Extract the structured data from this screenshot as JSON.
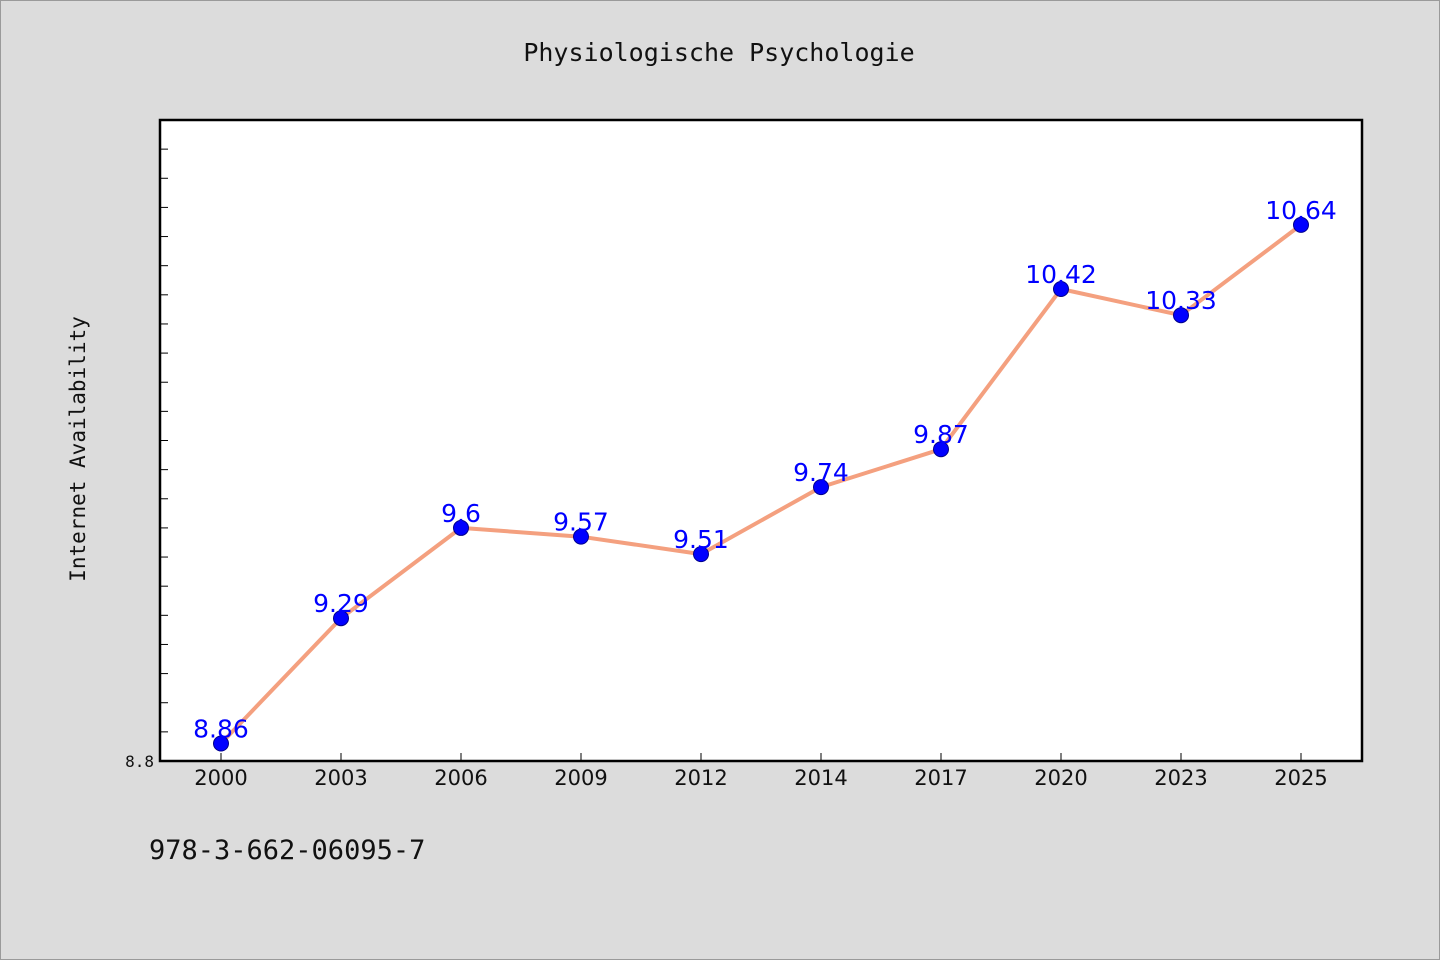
{
  "chart_data": {
    "type": "line",
    "title": "Physiologische Psychologie",
    "xlabel": "",
    "ylabel": "Internet Availability",
    "categories": [
      "2000",
      "2003",
      "2006",
      "2009",
      "2012",
      "2014",
      "2017",
      "2020",
      "2023",
      "2025"
    ],
    "series": [
      {
        "values": [
          8.86,
          9.29,
          9.6,
          9.57,
          9.51,
          9.74,
          9.87,
          10.42,
          10.33,
          10.64
        ],
        "line_color": "#f4a07f",
        "marker_color": "#0000ff"
      }
    ],
    "ylim": [
      8.8,
      11.0
    ],
    "ytick_labels": [
      "8.8"
    ],
    "data_labels": [
      "8.86",
      "9.29",
      "9.6",
      "9.57",
      "9.51",
      "9.74",
      "9.87",
      "10.42",
      "10.33",
      "10.64"
    ],
    "grid": false,
    "legend": "none"
  },
  "footer": {
    "code": "978-3-662-06095-7"
  }
}
